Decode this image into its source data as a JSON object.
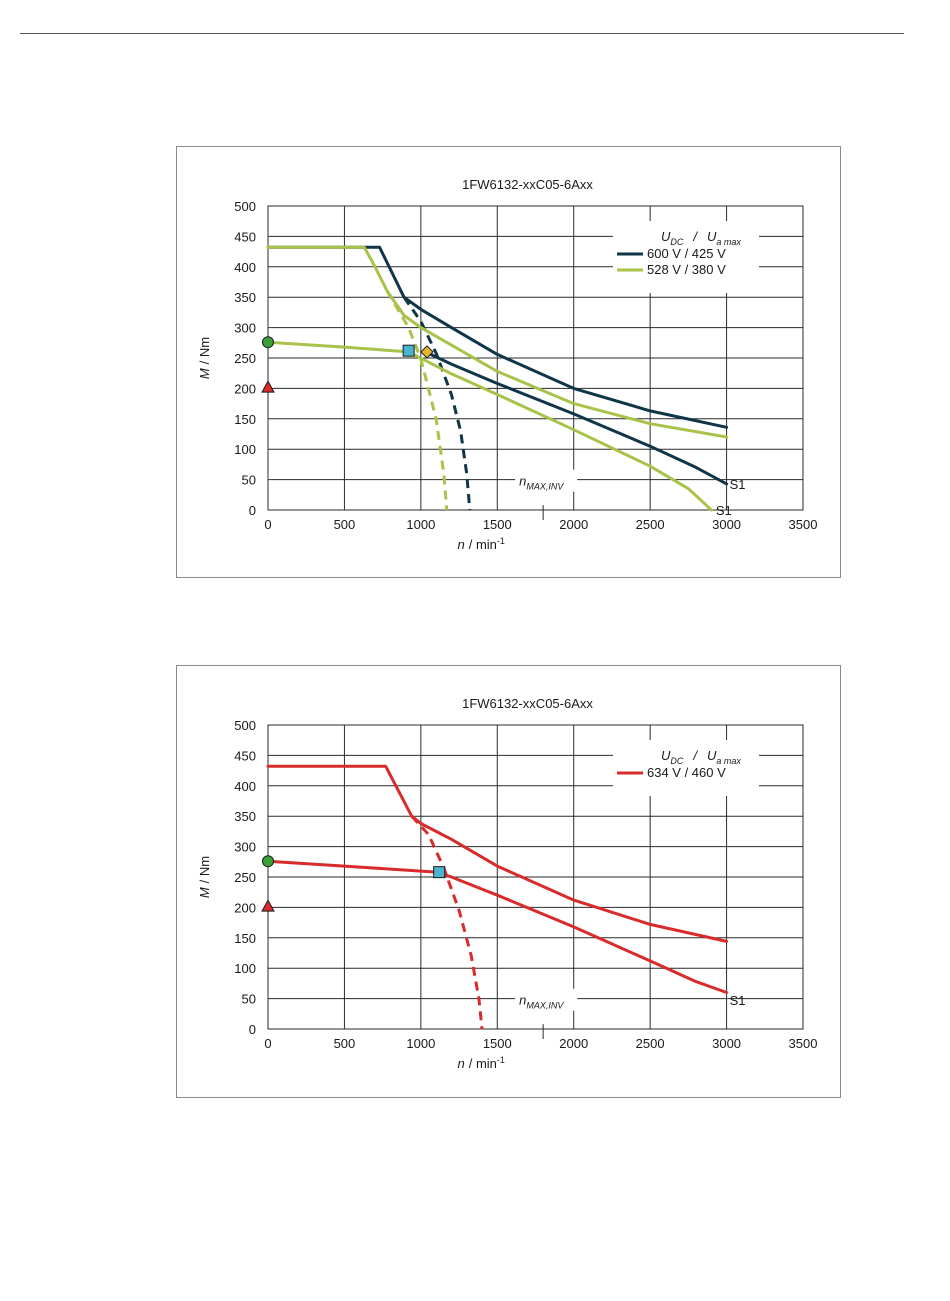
{
  "chart_data": [
    {
      "type": "line",
      "title": "1FW6132-xxC05-6Axx",
      "xlabel_var": "n",
      "xlabel_unit": "/ min",
      "xlabel_exp": "-1",
      "ylabel_var": "M",
      "ylabel_unit": "/ Nm",
      "xlim": [
        0,
        3500
      ],
      "ylim": [
        0,
        500
      ],
      "x_ticks": [
        0,
        500,
        1000,
        1500,
        2000,
        2500,
        3000,
        3500
      ],
      "y_ticks": [
        0,
        50,
        100,
        150,
        200,
        250,
        300,
        350,
        400,
        450,
        500
      ],
      "grid": true,
      "legend": {
        "placement": "top-right",
        "header": {
          "u": "U",
          "dc": "DC",
          "sep": "/",
          "ua": "U",
          "amax": "a max"
        },
        "entries": [
          {
            "label": "600 V / 425 V",
            "color": "#0f3549"
          },
          {
            "label": "528 V / 380 V",
            "color": "#a9c24a"
          }
        ]
      },
      "annotation": {
        "n": "n",
        "sub": "MAX,INV",
        "x": 1800
      },
      "s1_labels": [
        {
          "text": "S1",
          "x": 3020,
          "y": 43
        },
        {
          "text": "S1",
          "x": 2930,
          "y": 0
        }
      ],
      "series": [
        {
          "name": "600 V / 425 V",
          "color": "#0f3549",
          "style": "solid",
          "x": [
            0,
            730,
            890,
            1000,
            1200,
            1500,
            2000,
            2500,
            3000
          ],
          "y": [
            432,
            432,
            350,
            330,
            300,
            256,
            200,
            163,
            136
          ]
        },
        {
          "name": "600 V / 425 V",
          "color": "#0f3549",
          "style": "solid",
          "x": [
            1030,
            1200,
            1500,
            2000,
            2500,
            2800,
            3000
          ],
          "y": [
            260,
            240,
            208,
            158,
            105,
            70,
            43
          ]
        },
        {
          "name": "600 V / 425 V",
          "color": "#0f3549",
          "style": "dashed",
          "x": [
            890,
            1000,
            1100,
            1200,
            1260,
            1300,
            1320
          ],
          "y": [
            350,
            310,
            258,
            190,
            130,
            60,
            0
          ]
        },
        {
          "name": "528 V / 380 V",
          "color": "#a9c24a",
          "style": "solid",
          "x": [
            0,
            630,
            700,
            780,
            890,
            1000,
            1500,
            2000,
            2500,
            3000
          ],
          "y": [
            432,
            432,
            400,
            360,
            320,
            300,
            228,
            175,
            142,
            120
          ]
        },
        {
          "name": "528 V / 380 V",
          "color": "#a9c24a",
          "style": "solid",
          "x": [
            0,
            500,
            920,
            1200,
            1500,
            2000,
            2500,
            2750,
            2850,
            2900
          ],
          "y": [
            276,
            268,
            260,
            224,
            190,
            132,
            72,
            35,
            12,
            0
          ]
        },
        {
          "name": "528 V / 380 V",
          "color": "#a9c24a",
          "style": "dashed",
          "x": [
            780,
            920,
            1000,
            1100,
            1150,
            1170
          ],
          "y": [
            360,
            300,
            248,
            150,
            60,
            0
          ]
        }
      ],
      "markers": [
        {
          "shape": "circle",
          "x": 0,
          "y": 276,
          "fill": "#3aa03a"
        },
        {
          "shape": "triangle",
          "x": 0,
          "y": 202,
          "fill": "#d92b2b"
        },
        {
          "shape": "square",
          "x": 920,
          "y": 262,
          "fill": "#4ab4d0"
        },
        {
          "shape": "diamond",
          "x": 1040,
          "y": 260,
          "fill": "#e6b52e"
        }
      ]
    },
    {
      "type": "line",
      "title": "1FW6132-xxC05-6Axx",
      "xlabel_var": "n",
      "xlabel_unit": "/ min",
      "xlabel_exp": "-1",
      "ylabel_var": "M",
      "ylabel_unit": "/ Nm",
      "xlim": [
        0,
        3500
      ],
      "ylim": [
        0,
        500
      ],
      "x_ticks": [
        0,
        500,
        1000,
        1500,
        2000,
        2500,
        3000,
        3500
      ],
      "y_ticks": [
        0,
        50,
        100,
        150,
        200,
        250,
        300,
        350,
        400,
        450,
        500
      ],
      "grid": true,
      "legend": {
        "placement": "top-right",
        "header": {
          "u": "U",
          "dc": "DC",
          "sep": "/",
          "ua": "U",
          "amax": "a max"
        },
        "entries": [
          {
            "label": "634 V / 460 V",
            "color": "#d92b2b"
          }
        ]
      },
      "annotation": {
        "n": "n",
        "sub": "MAX,INV",
        "x": 1800
      },
      "s1_labels": [
        {
          "text": "S1",
          "x": 3020,
          "y": 48
        }
      ],
      "series": [
        {
          "name": "634 V / 460 V",
          "color": "#d92b2b",
          "style": "solid",
          "x": [
            0,
            770,
            940,
            1000,
            1200,
            1500,
            2000,
            2500,
            3000
          ],
          "y": [
            432,
            432,
            350,
            338,
            312,
            268,
            212,
            172,
            144
          ]
        },
        {
          "name": "634 V / 460 V",
          "color": "#d92b2b",
          "style": "solid",
          "x": [
            0,
            500,
            1100,
            1200,
            1500,
            2000,
            2500,
            2800,
            3000
          ],
          "y": [
            276,
            268,
            258,
            250,
            220,
            168,
            112,
            78,
            60
          ]
        },
        {
          "name": "634 V / 460 V",
          "color": "#d92b2b",
          "style": "dashed",
          "x": [
            940,
            1050,
            1150,
            1250,
            1330,
            1380,
            1400
          ],
          "y": [
            350,
            320,
            265,
            195,
            120,
            50,
            0
          ]
        }
      ],
      "markers": [
        {
          "shape": "circle",
          "x": 0,
          "y": 276,
          "fill": "#3aa03a"
        },
        {
          "shape": "triangle",
          "x": 0,
          "y": 202,
          "fill": "#d92b2b"
        },
        {
          "shape": "square",
          "x": 1120,
          "y": 258,
          "fill": "#4ab4d0"
        }
      ]
    }
  ]
}
